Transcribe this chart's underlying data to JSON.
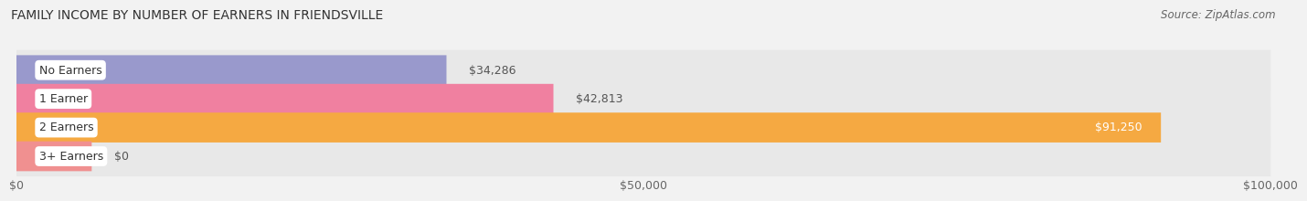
{
  "title": "FAMILY INCOME BY NUMBER OF EARNERS IN FRIENDSVILLE",
  "source": "Source: ZipAtlas.com",
  "categories": [
    "No Earners",
    "1 Earner",
    "2 Earners",
    "3+ Earners"
  ],
  "values": [
    34286,
    42813,
    91250,
    0
  ],
  "bar_colors": [
    "#9999cc",
    "#f080a0",
    "#f5a942",
    "#f09090"
  ],
  "track_color": "#e8e8e8",
  "value_labels": [
    "$34,286",
    "$42,813",
    "$91,250",
    "$0"
  ],
  "xlim": [
    0,
    100000
  ],
  "xticks": [
    0,
    50000,
    100000
  ],
  "xtick_labels": [
    "$0",
    "$50,000",
    "$100,000"
  ],
  "background_color": "#f2f2f2",
  "title_fontsize": 10,
  "source_fontsize": 8.5,
  "bar_label_fontsize": 9,
  "value_label_fontsize": 9,
  "tick_label_fontsize": 9
}
